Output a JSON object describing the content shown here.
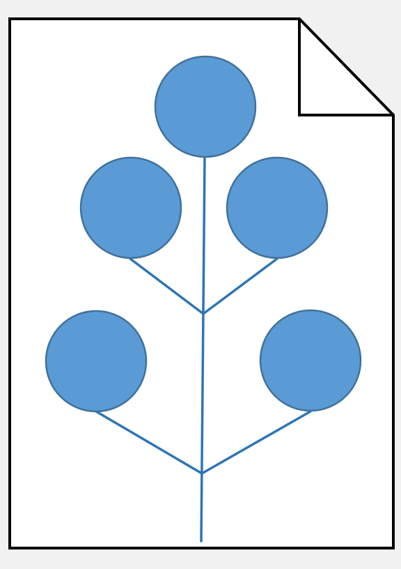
{
  "diagram": {
    "page_icon": {
      "name": "document-page-icon",
      "fill": "#ffffff",
      "stroke": "#000000"
    },
    "tree": {
      "node_fill": "#5b9bd5",
      "node_stroke": "#41719c",
      "branch_color": "#2e75b6",
      "node_count": 5
    }
  }
}
